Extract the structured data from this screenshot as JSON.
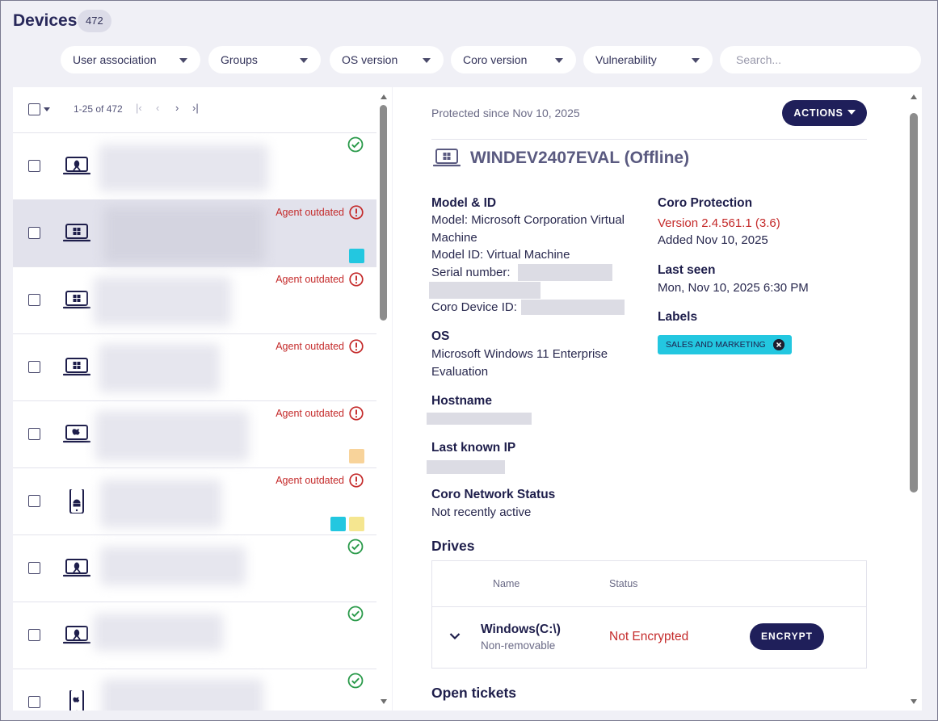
{
  "header": {
    "title": "Devices",
    "count": "472"
  },
  "filters": [
    {
      "label": "User association"
    },
    {
      "label": "Groups"
    },
    {
      "label": "OS version"
    },
    {
      "label": "Coro version"
    },
    {
      "label": "Vulnerability"
    }
  ],
  "search": {
    "placeholder": "Search..."
  },
  "pagination": {
    "range": "1-25 of 472",
    "first": "|‹",
    "prev": "‹",
    "next": "›",
    "last": "›|"
  },
  "devices": [
    {
      "type": "linux-laptop",
      "status": "ok",
      "status_text": "",
      "labels": []
    },
    {
      "type": "windows-laptop",
      "status": "outdated",
      "status_text": "Agent outdated",
      "labels": [
        "#23c7e0"
      ],
      "selected": true
    },
    {
      "type": "windows-laptop",
      "status": "outdated",
      "status_text": "Agent outdated",
      "labels": []
    },
    {
      "type": "windows-laptop",
      "status": "outdated",
      "status_text": "Agent outdated",
      "labels": []
    },
    {
      "type": "mac-laptop",
      "status": "outdated",
      "status_text": "Agent outdated",
      "labels": [
        "#f8d39a"
      ]
    },
    {
      "type": "android-phone",
      "status": "outdated",
      "status_text": "Agent outdated",
      "labels": [
        "#23c7e0",
        "#f5e690"
      ]
    },
    {
      "type": "linux-laptop",
      "status": "ok",
      "status_text": "",
      "labels": []
    },
    {
      "type": "linux-laptop",
      "status": "ok",
      "status_text": "",
      "labels": []
    },
    {
      "type": "ios-phone",
      "status": "ok",
      "status_text": "",
      "labels": []
    }
  ],
  "detail": {
    "protected_since": "Protected since Nov 10, 2025",
    "actions_label": "ACTIONS",
    "device_title": "WINDEV2407EVAL (Offline)",
    "model_heading": "Model & ID",
    "model_line1": "Model: Microsoft Corporation Virtual",
    "model_line2": "Machine",
    "model_id": "Model ID: Virtual Machine",
    "serial_label": "Serial number:",
    "coro_id_label": "Coro Device ID:",
    "os_heading": "OS",
    "os_line1": "Microsoft Windows 11 Enterprise",
    "os_line2": "Evaluation",
    "hostname_heading": "Hostname",
    "ip_heading": "Last known IP",
    "network_heading": "Coro Network Status",
    "network_status": "Not recently active",
    "protection_heading": "Coro Protection",
    "protection_version": "Version 2.4.561.1 (3.6)",
    "protection_added": "Added Nov 10, 2025",
    "last_seen_heading": "Last seen",
    "last_seen": "Mon, Nov 10, 2025 6:30 PM",
    "labels_heading": "Labels",
    "label_tag": "SALES AND MARKETING",
    "drives_heading": "Drives",
    "drives_columns": {
      "name": "Name",
      "status": "Status"
    },
    "drive": {
      "name": "Windows(C:\\)",
      "type": "Non-removable",
      "status": "Not Encrypted",
      "action": "ENCRYPT"
    },
    "tickets_heading": "Open tickets"
  },
  "colors": {
    "accent": "#1f1f5a",
    "error": "#c42a2a",
    "success": "#2a9a4a",
    "label_cyan": "#23c7e0"
  }
}
